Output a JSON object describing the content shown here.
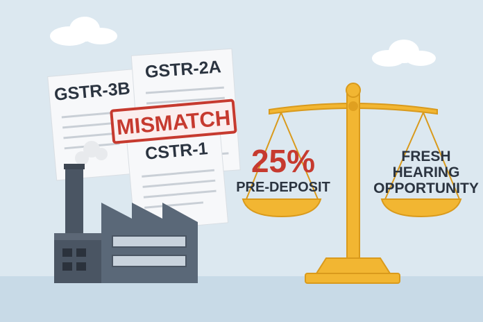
{
  "documents": [
    {
      "label": "GSTR-3B"
    },
    {
      "label": "GSTR-2A"
    },
    {
      "label": "CSTR-1"
    }
  ],
  "stamp": "MISMATCH",
  "scale": {
    "left": {
      "value": "25%",
      "label": "PRE-DEPOSIT"
    },
    "right": {
      "lines": [
        "FRESH",
        "HEARING",
        "OPPORTUNITY"
      ]
    }
  }
}
